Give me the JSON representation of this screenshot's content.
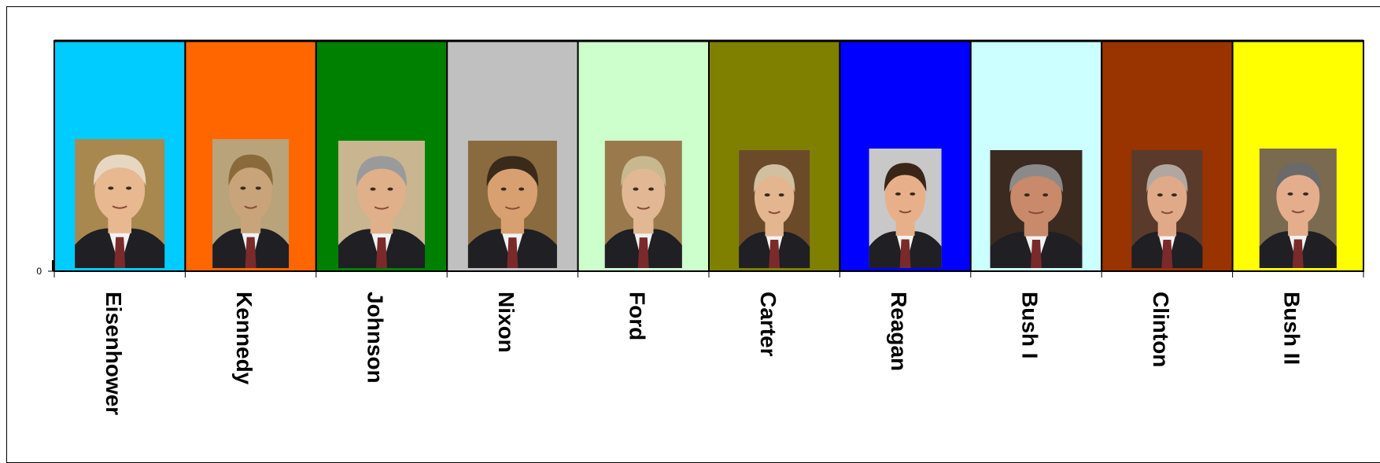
{
  "chart_data": {
    "type": "bar",
    "title": "",
    "xlabel": "",
    "ylabel": "",
    "y_tick_labels": [
      "0"
    ],
    "categories": [
      "Eisenhower",
      "Kennedy",
      "Johnson",
      "Nixon",
      "Ford",
      "Carter",
      "Reagan",
      "Bush I",
      "Clinton",
      "Bush II"
    ],
    "colors": [
      "#00ccff",
      "#ff6600",
      "#008000",
      "#c0c0c0",
      "#ccffcc",
      "#808000",
      "#0000ff",
      "#ccffff",
      "#993300",
      "#ffff00"
    ],
    "portrait_icons": [
      "portrait-eisenhower",
      "portrait-kennedy",
      "portrait-johnson",
      "portrait-nixon",
      "portrait-ford",
      "portrait-carter",
      "portrait-reagan",
      "portrait-bush-i",
      "portrait-clinton",
      "portrait-bush-ii"
    ],
    "values": [
      1,
      1,
      1,
      1,
      1,
      1,
      1,
      1,
      1,
      1
    ],
    "legend": "none",
    "grid": false
  }
}
